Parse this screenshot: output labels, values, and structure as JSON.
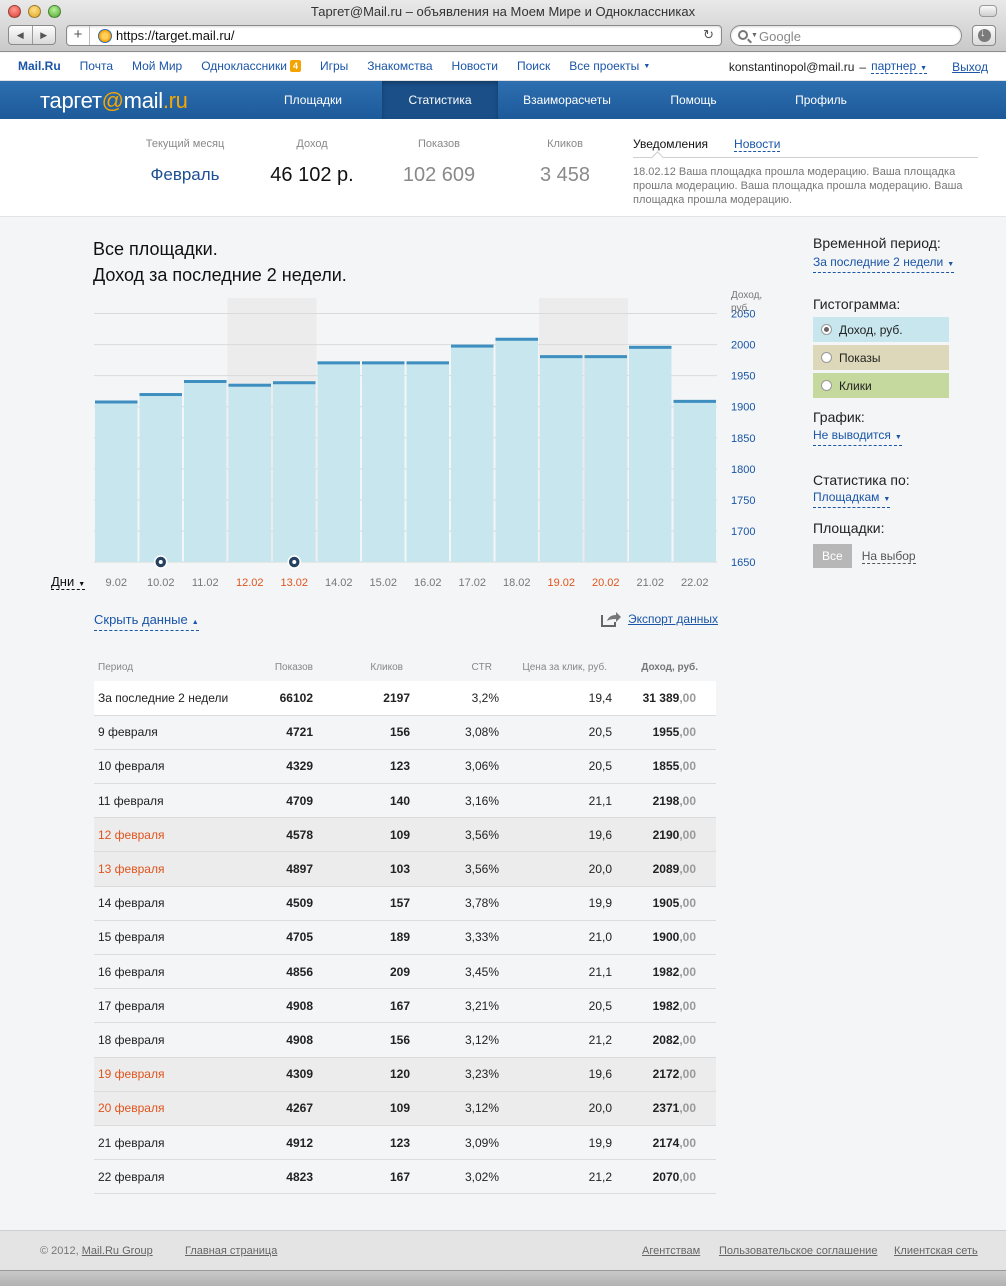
{
  "browser": {
    "window_title": "Таргет@Mail.ru – объявления на Моем Мире и Одноклассниках",
    "url": "https://target.mail.ru/",
    "search_placeholder": "Google"
  },
  "portal": {
    "links": [
      {
        "label": "Mail.Ru"
      },
      {
        "label": "Почта"
      },
      {
        "label": "Мой Мир"
      },
      {
        "label": "Одноклассники",
        "badge": "4"
      },
      {
        "label": "Игры"
      },
      {
        "label": "Знакомства"
      },
      {
        "label": "Новости"
      },
      {
        "label": "Поиск"
      },
      {
        "label": "Все проекты"
      }
    ],
    "user_email": "konstantinopol@mail.ru",
    "dash": "–",
    "role": "партнер",
    "logout": "Выход"
  },
  "logo": {
    "part1": "таргет",
    "at": "@",
    "part2": "mail",
    "dot": ".",
    "part3": "ru"
  },
  "nav": {
    "items": [
      "Площадки",
      "Статистика",
      "Взаиморасчеты",
      "Помощь",
      "Профиль"
    ],
    "active_index": 1
  },
  "summary": {
    "month_label": "Текущий месяц",
    "month": "Февраль",
    "income_label": "Доход",
    "income": "46 102 р.",
    "shows_label": "Показов",
    "shows": "102 609",
    "clicks_label": "Кликов",
    "clicks": "3 458"
  },
  "notices": {
    "tab_active": "Уведомления",
    "tab_other": "Новости",
    "text": "18.02.12 Ваша площадка прошла модерацию. Ваша площадка прошла модерацию. Ваша площадка прошла модерацию. Ваша площадка прошла модерацию."
  },
  "chart": {
    "title_line1": "Все площадки.",
    "title_line2": "Доход за последние 2 недели.",
    "days_selector": "Дни"
  },
  "chart_data": {
    "type": "bar",
    "title": "Доход за последние 2 недели.",
    "ylabel": "Доход, руб.",
    "ylim": [
      1650,
      2075
    ],
    "yticks": [
      2050,
      2000,
      1950,
      1900,
      1850,
      1800,
      1750,
      1700,
      1650
    ],
    "categories": [
      "9.02",
      "10.02",
      "11.02",
      "12.02",
      "13.02",
      "14.02",
      "15.02",
      "16.02",
      "17.02",
      "18.02",
      "19.02",
      "20.02",
      "21.02",
      "22.02"
    ],
    "values": [
      1910,
      1922,
      1943,
      1937,
      1941,
      1973,
      1973,
      1973,
      2000,
      2011,
      1983,
      1983,
      1998,
      1911
    ],
    "highlighted": [
      false,
      false,
      false,
      true,
      true,
      false,
      false,
      false,
      false,
      false,
      true,
      true,
      false,
      false
    ],
    "markers": [
      1,
      4
    ],
    "colors": {
      "bar": "#c8e6ee",
      "bar_top": "#3e8ec0",
      "weekend_label": "#e0541d",
      "axis_label": "#1a55a8"
    }
  },
  "side": {
    "period_label": "Временной период:",
    "period_value": "За последние 2 недели",
    "histogram_label": "Гистограмма:",
    "histogram_options": [
      {
        "label": "Доход, руб.",
        "selected": true,
        "color": "#c8e6ee"
      },
      {
        "label": "Показы",
        "selected": false,
        "color": "#dcd8b9"
      },
      {
        "label": "Клики",
        "selected": false,
        "color": "#c5d89d"
      }
    ],
    "graph_label": "График:",
    "graph_value": "Не выводится",
    "stats_by_label": "Статистика по:",
    "stats_by_value": "Площадкам",
    "platforms_label": "Площадки:",
    "platforms_all": "Все",
    "platforms_choose": "На выбор"
  },
  "table": {
    "hide_label": "Скрыть данные",
    "export_label": "Экспорт данных",
    "headers": [
      "Период",
      "Показов",
      "Кликов",
      "CTR",
      "Цена за клик, руб.",
      "Доход, руб."
    ],
    "rows": [
      {
        "period": "За последние 2 недели",
        "shows": "66102",
        "clicks": "2197",
        "ctr": "3,2%",
        "price": "19,4",
        "income": "31 389",
        "cents": ",00",
        "type": "total"
      },
      {
        "period": "9 февраля",
        "shows": "4721",
        "clicks": "156",
        "ctr": "3,08%",
        "price": "20,5",
        "income": "1955",
        "cents": ",00",
        "type": "normal"
      },
      {
        "period": "10 февраля",
        "shows": "4329",
        "clicks": "123",
        "ctr": "3,06%",
        "price": "20,5",
        "income": "1855",
        "cents": ",00",
        "type": "normal"
      },
      {
        "period": "11 февраля",
        "shows": "4709",
        "clicks": "140",
        "ctr": "3,16%",
        "price": "21,1",
        "income": "2198",
        "cents": ",00",
        "type": "normal"
      },
      {
        "period": "12 февраля",
        "shows": "4578",
        "clicks": "109",
        "ctr": "3,56%",
        "price": "19,6",
        "income": "2190",
        "cents": ",00",
        "type": "weekend"
      },
      {
        "period": "13 февраля",
        "shows": "4897",
        "clicks": "103",
        "ctr": "3,56%",
        "price": "20,0",
        "income": "2089",
        "cents": ",00",
        "type": "weekend"
      },
      {
        "period": "14 февраля",
        "shows": "4509",
        "clicks": "157",
        "ctr": "3,78%",
        "price": "19,9",
        "income": "1905",
        "cents": ",00",
        "type": "normal"
      },
      {
        "period": "15 февраля",
        "shows": "4705",
        "clicks": "189",
        "ctr": "3,33%",
        "price": "21,0",
        "income": "1900",
        "cents": ",00",
        "type": "normal"
      },
      {
        "period": "16 февраля",
        "shows": "4856",
        "clicks": "209",
        "ctr": "3,45%",
        "price": "21,1",
        "income": "1982",
        "cents": ",00",
        "type": "normal"
      },
      {
        "period": "17 февраля",
        "shows": "4908",
        "clicks": "167",
        "ctr": "3,21%",
        "price": "20,5",
        "income": "1982",
        "cents": ",00",
        "type": "normal"
      },
      {
        "period": "18 февраля",
        "shows": "4908",
        "clicks": "156",
        "ctr": "3,12%",
        "price": "21,2",
        "income": "2082",
        "cents": ",00",
        "type": "normal"
      },
      {
        "period": "19 февраля",
        "shows": "4309",
        "clicks": "120",
        "ctr": "3,23%",
        "price": "19,6",
        "income": "2172",
        "cents": ",00",
        "type": "weekend"
      },
      {
        "period": "20 февраля",
        "shows": "4267",
        "clicks": "109",
        "ctr": "3,12%",
        "price": "20,0",
        "income": "2371",
        "cents": ",00",
        "type": "weekend"
      },
      {
        "period": "21 февраля",
        "shows": "4912",
        "clicks": "123",
        "ctr": "3,09%",
        "price": "19,9",
        "income": "2174",
        "cents": ",00",
        "type": "normal"
      },
      {
        "period": "22 февраля",
        "shows": "4823",
        "clicks": "167",
        "ctr": "3,02%",
        "price": "21,2",
        "income": "2070",
        "cents": ",00",
        "type": "normal"
      }
    ]
  },
  "footer": {
    "copyright": "© 2012,",
    "group": "Mail.Ru Group",
    "home": "Главная страница",
    "agencies": "Агентствам",
    "agreement": "Пользовательское соглашение",
    "network": "Клиентская сеть"
  }
}
